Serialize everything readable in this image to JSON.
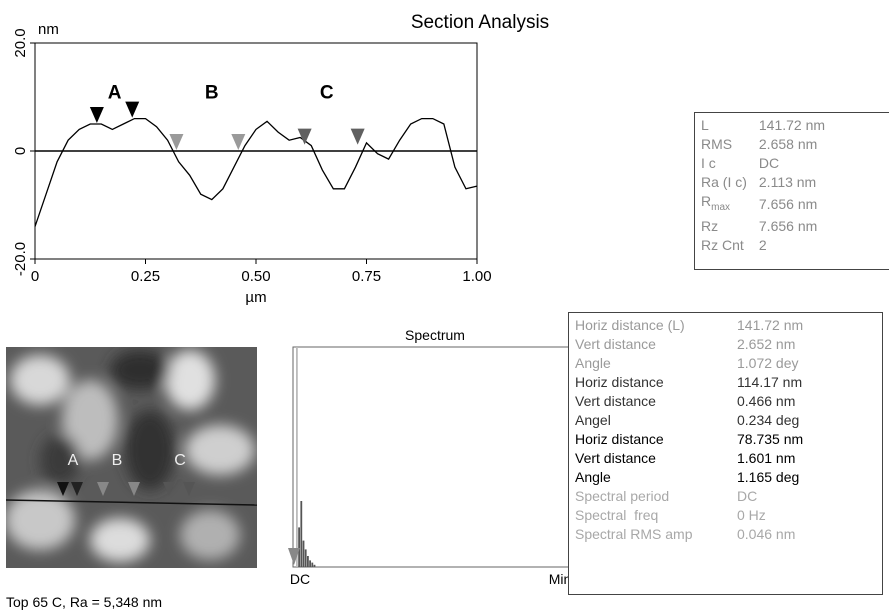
{
  "header": {
    "title": "Section Analysis"
  },
  "chart_data": {
    "type": "line",
    "y_label": "nm",
    "x_label": "µm",
    "x": [
      0,
      0.025,
      0.05,
      0.075,
      0.1,
      0.125,
      0.15,
      0.175,
      0.2,
      0.225,
      0.25,
      0.275,
      0.3,
      0.325,
      0.35,
      0.375,
      0.4,
      0.425,
      0.45,
      0.475,
      0.5,
      0.525,
      0.55,
      0.575,
      0.6,
      0.625,
      0.65,
      0.675,
      0.7,
      0.725,
      0.75,
      0.775,
      0.8,
      0.825,
      0.85,
      0.875,
      0.9,
      0.925,
      0.95,
      0.975,
      1.0
    ],
    "series": [
      {
        "color": "#000000",
        "values": [
          -14,
          -8,
          -2,
          2,
          4,
          5,
          5,
          4,
          5,
          6,
          6,
          4.5,
          2,
          -2,
          -4.5,
          -8,
          -9,
          -7,
          -3,
          1,
          4,
          5.5,
          3.5,
          2,
          2.5,
          1,
          -3.5,
          -7,
          -7,
          -3,
          1.5,
          -0.5,
          -1.5,
          2,
          5,
          6,
          6,
          5,
          -3,
          -7,
          -6.5
        ]
      }
    ],
    "xlim": [
      0,
      1
    ],
    "ylim": [
      -20,
      20
    ],
    "xticks": [
      0,
      0.25,
      {
        "value": 0.5,
        "label": "0.50"
      },
      0.75,
      {
        "value": 1,
        "label": "1.00"
      }
    ],
    "yticks": [
      {
        "value": -20,
        "label": "-20.0"
      },
      0,
      {
        "value": 20,
        "label": "20.0"
      }
    ],
    "zero_line": true,
    "cursors": [
      {
        "x": 0.14,
        "y": 5,
        "color": "#000000"
      },
      {
        "x": 0.22,
        "y": 6,
        "color": "#000000"
      },
      {
        "x": 0.32,
        "y": 0,
        "color": "#9a9a9a"
      },
      {
        "x": 0.46,
        "y": 0,
        "color": "#9a9a9a"
      },
      {
        "x": 0.61,
        "y": 1,
        "color": "#606060"
      },
      {
        "x": 0.73,
        "y": 1,
        "color": "#606060"
      }
    ],
    "annotations": [
      {
        "text": "A",
        "x": 0.18,
        "y": 11
      },
      {
        "text": "B",
        "x": 0.4,
        "y": 11
      },
      {
        "text": "C",
        "x": 0.66,
        "y": 11
      }
    ]
  },
  "image": {
    "labels": [
      "A",
      "B",
      "C"
    ],
    "caption": "Top 65 C, Ra = 5,348 nm"
  },
  "spectrum": {
    "title": "Spectrum",
    "x_labels": [
      "DC",
      "Min"
    ],
    "values": [
      100,
      18,
      30,
      12,
      8,
      5,
      3,
      2,
      1
    ],
    "ylim": [
      0,
      100
    ]
  },
  "summary_table": {
    "rows": [
      [
        "L",
        "141.72 nm"
      ],
      [
        "RMS",
        "2.658 nm"
      ],
      [
        "I c",
        "DC"
      ],
      [
        "Ra (I c)",
        "2.113 nm"
      ],
      [
        {
          "text": "R",
          "sub": "max"
        },
        "7.656 nm"
      ],
      [
        "Rz",
        "7.656 nm"
      ],
      [
        "Rz Cnt",
        "2"
      ]
    ]
  },
  "measure_table": {
    "rows": [
      [
        "Horiz distance (L)",
        "141.72 nm"
      ],
      [
        "Vert distance",
        "2.652 nm"
      ],
      [
        "Angle",
        "1.072 dey"
      ],
      [
        "Horiz distance",
        "114.17 nm"
      ],
      [
        "Vert distance",
        "0.466 nm"
      ],
      [
        "Angel",
        "0.234 deg"
      ],
      [
        "Horiz distance",
        "78.735 nm"
      ],
      [
        "Vert distance",
        "1.601 nm"
      ],
      [
        "Angle",
        "1.165 deg"
      ],
      [
        "Spectral period",
        "DC"
      ],
      [
        "Spectral  freq",
        "0 Hz"
      ],
      [
        "Spectral RMS amp",
        "0.046 nm"
      ]
    ]
  }
}
